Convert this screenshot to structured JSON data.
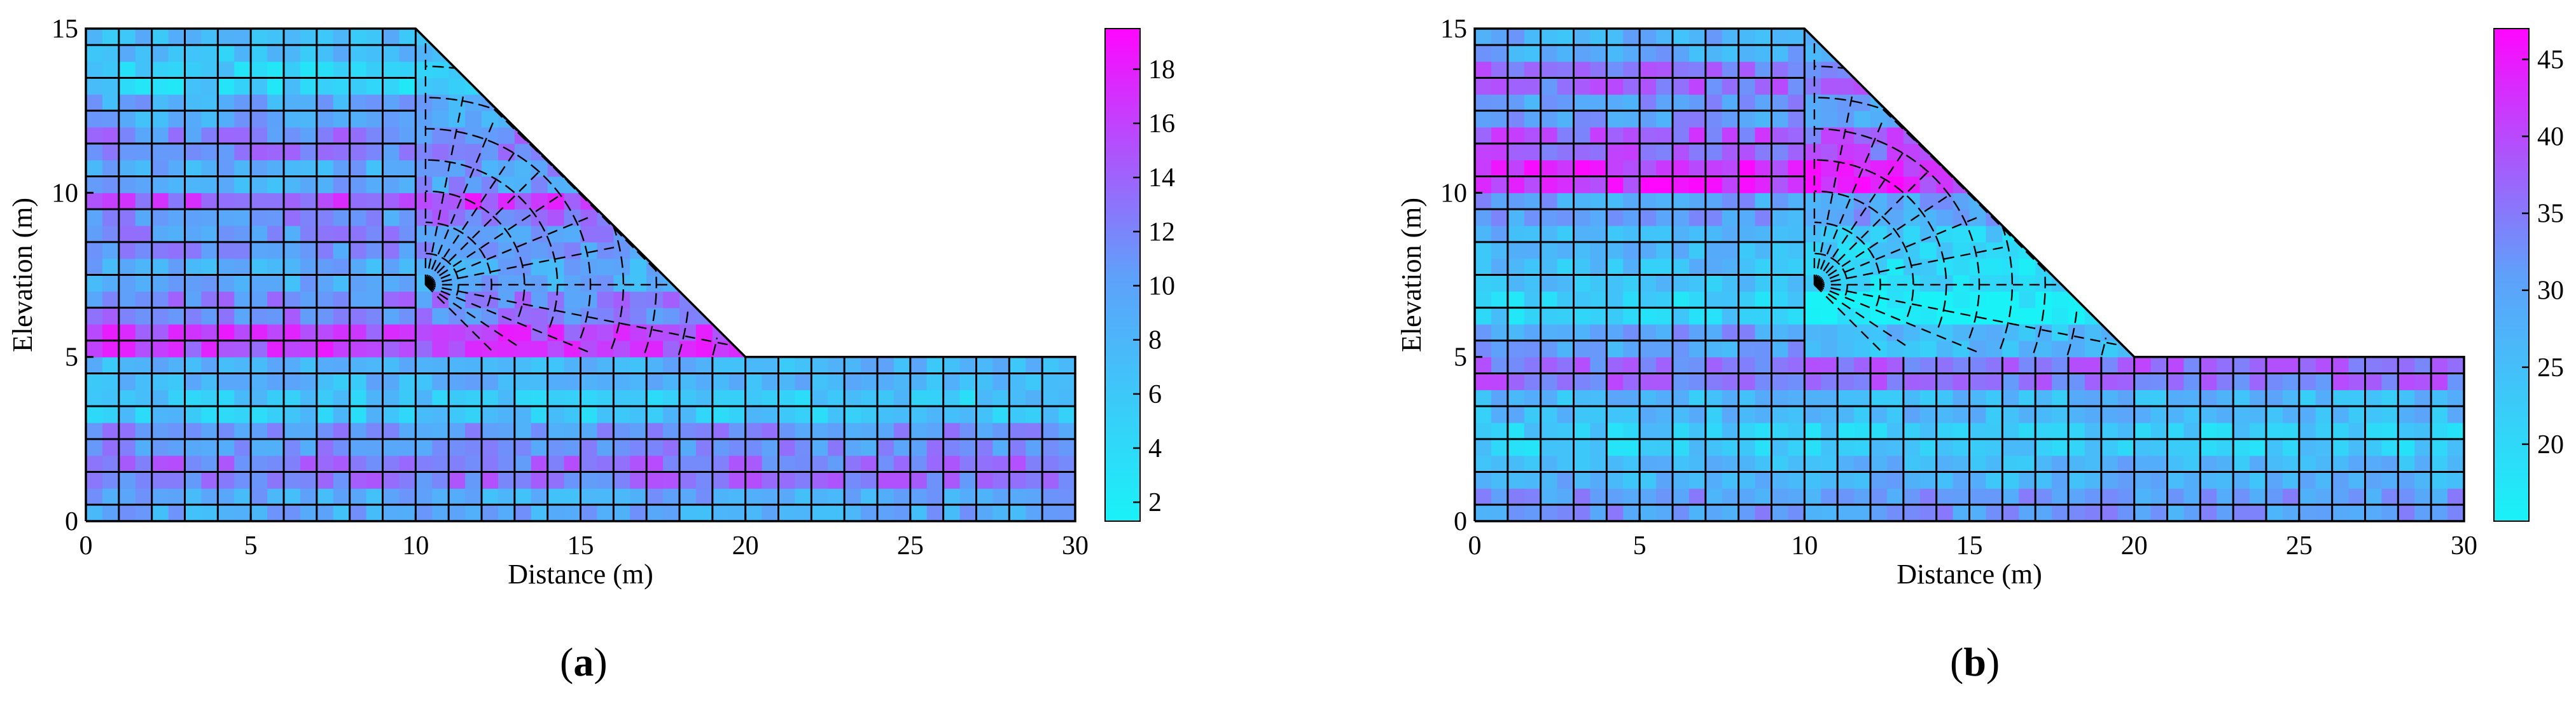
{
  "chart_data": [
    {
      "type": "heatmap",
      "panel_label": "a",
      "xlabel": "Distance (m)",
      "ylabel": "Elevation (m)",
      "xlim": [
        0,
        30
      ],
      "ylim": [
        0,
        15
      ],
      "xticks": [
        0,
        5,
        10,
        15,
        20,
        25,
        30
      ],
      "yticks": [
        0,
        5,
        10,
        15
      ],
      "colorbar": {
        "range": [
          1.3,
          19.5
        ],
        "ticks": [
          2,
          4,
          6,
          8,
          10,
          12,
          14,
          16,
          18
        ],
        "low_color": "#19f2f7",
        "high_color": "#ff06ff"
      },
      "geometry": {
        "crest_x": 10,
        "crest_y": 15,
        "toe_x": 20,
        "toe_y": 5,
        "slope_ratio": "1:1"
      },
      "field_bands": [
        {
          "y_range": [
            14,
            15
          ],
          "value": 7
        },
        {
          "y_range": [
            13,
            14
          ],
          "value": 5
        },
        {
          "y_range": [
            12,
            13
          ],
          "value": 9
        },
        {
          "y_range": [
            11,
            12
          ],
          "value": 12
        },
        {
          "y_range": [
            10,
            11
          ],
          "value": 9
        },
        {
          "y_range": [
            9.5,
            10.5
          ],
          "value": 15
        },
        {
          "y_range": [
            8,
            9.5
          ],
          "value": 11
        },
        {
          "y_range": [
            7,
            8
          ],
          "value": 9
        },
        {
          "y_range": [
            6,
            7
          ],
          "value": 12
        },
        {
          "y_range": [
            5,
            6
          ],
          "value": 16
        },
        {
          "y_range": [
            4,
            5
          ],
          "value": 8
        },
        {
          "y_range": [
            3,
            4
          ],
          "value": 6
        },
        {
          "y_range": [
            2,
            3
          ],
          "value": 11
        },
        {
          "y_range": [
            1,
            2
          ],
          "value": 13
        },
        {
          "y_range": [
            0,
            1
          ],
          "value": 9
        }
      ]
    },
    {
      "type": "heatmap",
      "panel_label": "b",
      "xlabel": "Distance (m)",
      "ylabel": "Elevation (m)",
      "xlim": [
        0,
        30
      ],
      "ylim": [
        0,
        15
      ],
      "xticks": [
        0,
        5,
        10,
        15,
        20,
        25,
        30
      ],
      "yticks": [
        0,
        5,
        10,
        15
      ],
      "colorbar": {
        "range": [
          15,
          47
        ],
        "ticks": [
          20,
          25,
          30,
          35,
          40,
          45
        ],
        "low_color": "#19f2f7",
        "high_color": "#ff06ff"
      },
      "geometry": {
        "crest_x": 10,
        "crest_y": 15,
        "toe_x": 20,
        "toe_y": 5,
        "slope_ratio": "1:1"
      },
      "field_bands": [
        {
          "y_range": [
            14,
            15
          ],
          "value": 28
        },
        {
          "y_range": [
            13,
            14
          ],
          "value": 36
        },
        {
          "y_range": [
            12,
            13
          ],
          "value": 31
        },
        {
          "y_range": [
            11,
            12
          ],
          "value": 38
        },
        {
          "y_range": [
            10,
            11
          ],
          "value": 43
        },
        {
          "y_range": [
            9,
            10
          ],
          "value": 30
        },
        {
          "y_range": [
            8,
            9
          ],
          "value": 27
        },
        {
          "y_range": [
            7,
            8
          ],
          "value": 25
        },
        {
          "y_range": [
            6,
            7
          ],
          "value": 21
        },
        {
          "y_range": [
            5,
            6
          ],
          "value": 30
        },
        {
          "y_range": [
            4,
            5
          ],
          "value": 36
        },
        {
          "y_range": [
            3,
            4
          ],
          "value": 26
        },
        {
          "y_range": [
            2,
            3
          ],
          "value": 22
        },
        {
          "y_range": [
            1,
            2
          ],
          "value": 27
        },
        {
          "y_range": [
            0,
            1
          ],
          "value": 31
        }
      ]
    }
  ]
}
